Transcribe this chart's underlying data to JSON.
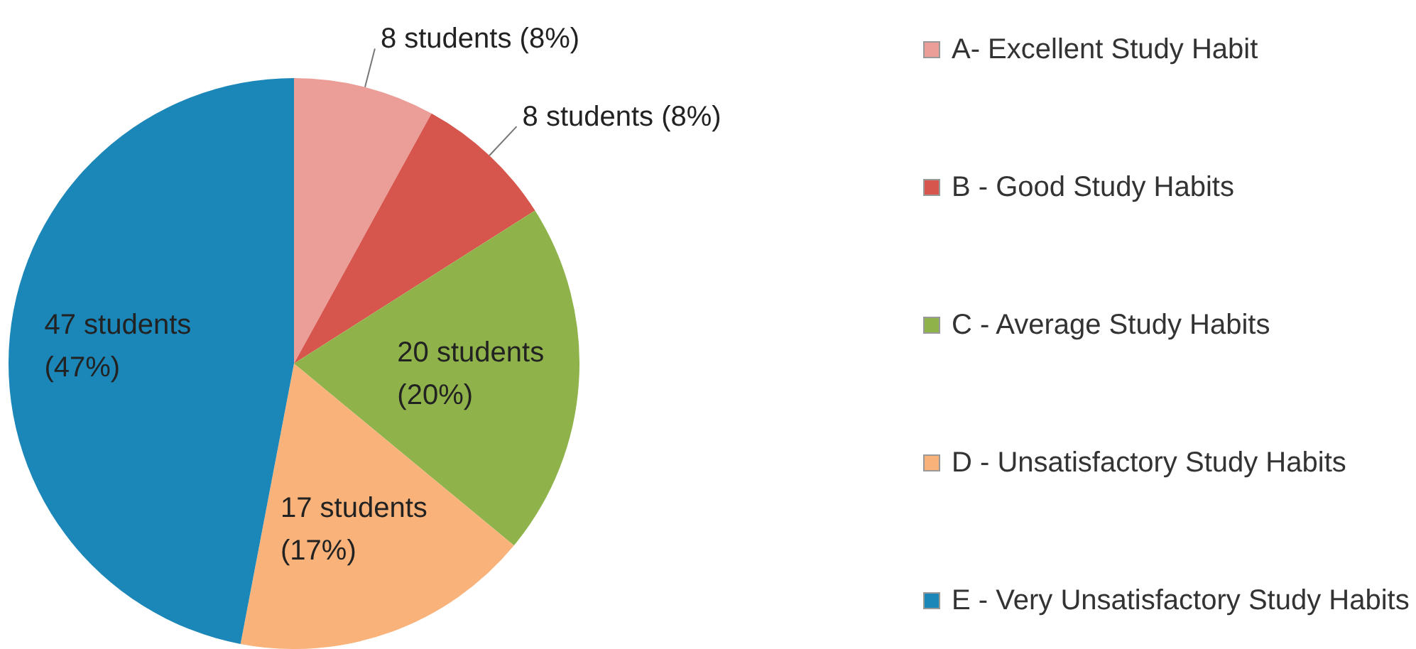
{
  "chart_data": {
    "type": "pie",
    "categories": [
      "A- Excellent Study Habit",
      "B - Good Study Habits",
      "C - Average Study Habits",
      "D - Unsatisfactory Study Habits",
      "E - Very Unsatisfactory Study Habits"
    ],
    "values": [
      8,
      8,
      20,
      17,
      47
    ],
    "colors": [
      "#eb9d97",
      "#d6554c",
      "#8fb34a",
      "#f8b27a",
      "#1b86b8"
    ],
    "value_labels": [
      "8 students (8%)",
      "8 students (8%)",
      "20 students (20%)",
      "17 students (17%)",
      "47 students (47%)"
    ],
    "legend": "right"
  }
}
